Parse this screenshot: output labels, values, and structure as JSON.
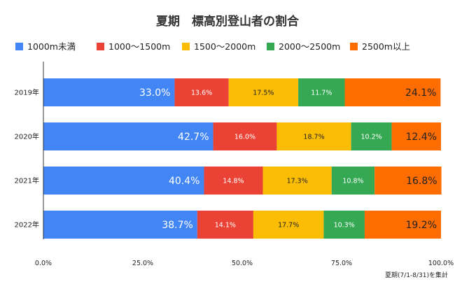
{
  "chart_data": {
    "type": "bar",
    "orientation": "horizontal",
    "stacked": "percent",
    "title": "夏期　標高別登山者の割合",
    "categories": [
      "2019年",
      "2020年",
      "2021年",
      "2022年"
    ],
    "series": [
      {
        "name": "1000m未満",
        "color": "#4285f4",
        "values": [
          33.0,
          42.7,
          40.4,
          38.7
        ],
        "labels": [
          "33.0%",
          "42.7%",
          "40.4%",
          "38.7%"
        ]
      },
      {
        "name": "1000〜1500m",
        "color": "#ea4335",
        "values": [
          13.6,
          16.0,
          14.8,
          14.1
        ],
        "labels": [
          "13.6%",
          "16.0%",
          "14.8%",
          "14.1%"
        ]
      },
      {
        "name": "1500〜2000m",
        "color": "#fbbc04",
        "values": [
          17.5,
          18.7,
          17.3,
          17.7
        ],
        "labels": [
          "17.5%",
          "18.7%",
          "17.3%",
          "17.7%"
        ]
      },
      {
        "name": "2000〜2500m",
        "color": "#34a853",
        "values": [
          11.7,
          10.2,
          10.8,
          10.3
        ],
        "labels": [
          "11.7%",
          "10.2%",
          "10.8%",
          "10.3%"
        ]
      },
      {
        "name": "2500m以上",
        "color": "#ff6d01",
        "values": [
          24.1,
          12.4,
          16.8,
          19.2
        ],
        "labels": [
          "24.1%",
          "12.4%",
          "16.8%",
          "19.2%"
        ]
      }
    ],
    "xlim": [
      0,
      100
    ],
    "xticks": [
      "0.0%",
      "25.0%",
      "50.0%",
      "75.0%",
      "100.0%"
    ],
    "grid": false,
    "legend": "top",
    "note": "夏期(7/1-8/31)を集計"
  }
}
